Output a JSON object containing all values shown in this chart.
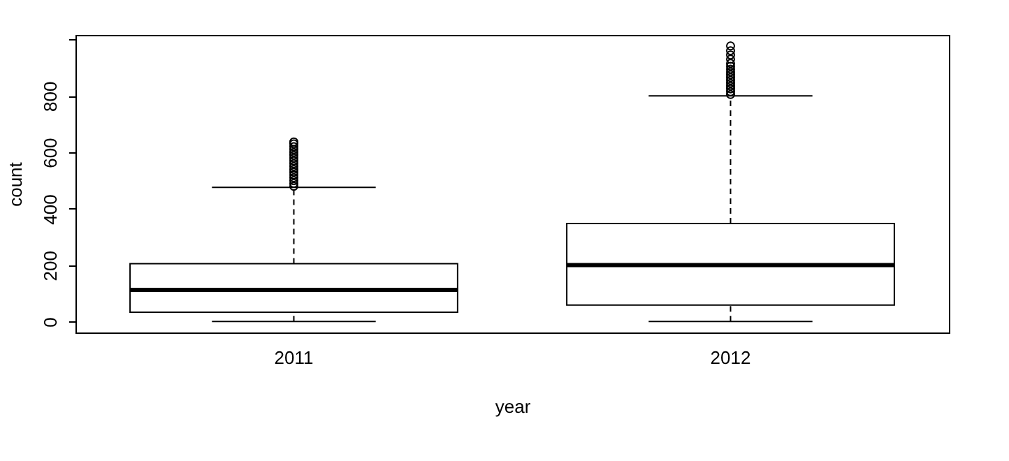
{
  "chart_data": {
    "type": "box",
    "xlabel": "year",
    "ylabel": "count",
    "categories": [
      "2011",
      "2012"
    ],
    "boxes": [
      {
        "low": 1,
        "q1": 34,
        "median": 113,
        "q3": 206,
        "high": 476,
        "outliers": [
          480,
          490,
          500,
          510,
          520,
          530,
          540,
          550,
          560,
          570,
          580,
          590,
          600,
          610,
          620,
          630,
          637
        ]
      },
      {
        "low": 1,
        "q1": 59,
        "median": 201,
        "q3": 348,
        "high": 800,
        "outliers": [
          805,
          815,
          825,
          835,
          845,
          855,
          865,
          875,
          885,
          895,
          905,
          915,
          930,
          945,
          960,
          977
        ]
      }
    ],
    "ylim": [
      -38,
      1016
    ],
    "yticks": [
      0,
      200,
      400,
      600,
      800,
      {
        "value": 1000,
        "label": null
      }
    ],
    "grid": false
  }
}
